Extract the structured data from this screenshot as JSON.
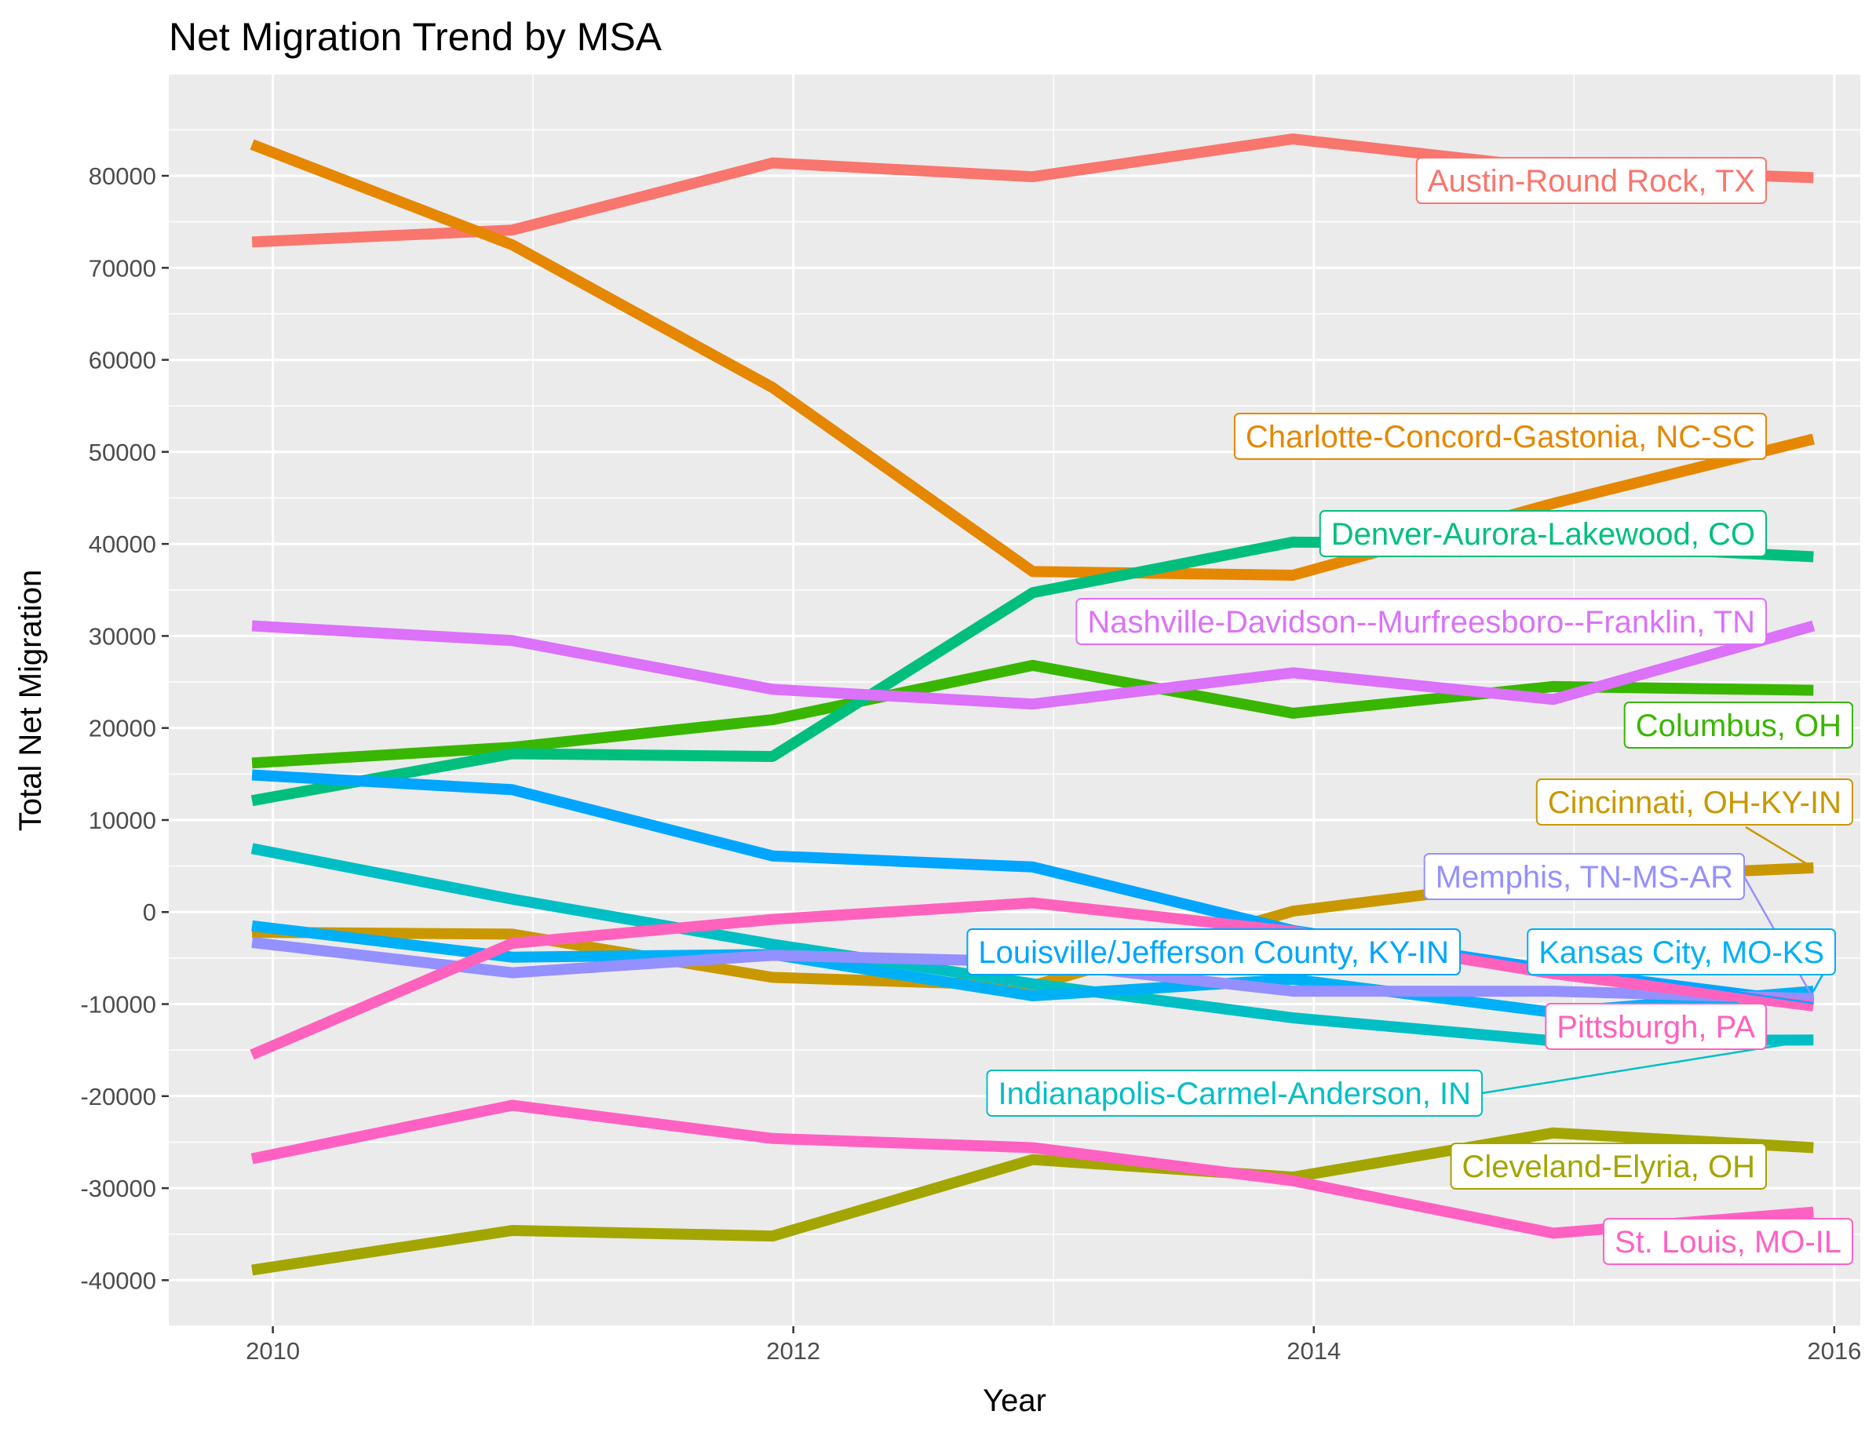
{
  "chart_data": {
    "type": "line",
    "title": "Net Migration Trend by MSA",
    "xlabel": "Year",
    "ylabel": "Total Net Migration",
    "xlim": [
      2009.6,
      2016.1
    ],
    "ylim": [
      -45000,
      91000
    ],
    "x_ticks": [
      2010,
      2012,
      2014,
      2016
    ],
    "y_ticks": [
      -40000,
      -30000,
      -20000,
      -10000,
      0,
      10000,
      20000,
      30000,
      40000,
      50000,
      60000,
      70000,
      80000
    ],
    "grid": true,
    "legend": "direct labels at line ends",
    "x": [
      2009.92,
      2010.92,
      2011.92,
      2012.92,
      2013.92,
      2014.92,
      2015.92
    ],
    "series": [
      {
        "name": "Austin-Round Rock, TX",
        "color": "#F8766D",
        "values": [
          72800,
          74100,
          81400,
          79900,
          84000,
          80800,
          79800
        ]
      },
      {
        "name": "Charlotte-Concord-Gastonia, NC-SC",
        "color": "#E58700",
        "values": [
          83400,
          72500,
          57000,
          37000,
          36600,
          44400,
          51400
        ]
      },
      {
        "name": "Cincinnati, OH-KY-IN",
        "color": "#C99800",
        "values": [
          -2200,
          -2400,
          -7100,
          -8000,
          100,
          3600,
          4800
        ]
      },
      {
        "name": "Cleveland-Elyria, OH",
        "color": "#A3A500",
        "values": [
          -38900,
          -34600,
          -35200,
          -26900,
          -28800,
          -24000,
          -25600
        ]
      },
      {
        "name": "Columbus, OH",
        "color": "#39B600",
        "values": [
          16200,
          17900,
          20900,
          26800,
          21600,
          24500,
          24100
        ]
      },
      {
        "name": "Denver-Aurora-Lakewood, CO",
        "color": "#00BF7D",
        "values": [
          12100,
          17200,
          16900,
          34700,
          40200,
          40000,
          38600
        ]
      },
      {
        "name": "Indianapolis-Carmel-Anderson, IN",
        "color": "#00BFC4",
        "values": [
          6900,
          1400,
          -3500,
          -7800,
          -11500,
          -14000,
          -13900
        ]
      },
      {
        "name": "Kansas City, MO-KS",
        "color": "#00B0F6",
        "values": [
          -1500,
          -4900,
          -4600,
          -9100,
          -7300,
          -10900,
          -8600
        ]
      },
      {
        "name": "Louisville/Jefferson County, KY-IN",
        "color": "#00A5FF",
        "values": [
          14900,
          13300,
          6100,
          4900,
          -2000,
          -6300,
          -9900
        ]
      },
      {
        "name": "Memphis, TN-MS-AR",
        "color": "#9590FF",
        "values": [
          -3300,
          -6600,
          -4700,
          -5400,
          -8600,
          -8600,
          -9400
        ]
      },
      {
        "name": "Nashville-Davidson--Murfreesboro--Franklin, TN",
        "color": "#DC71FA",
        "values": [
          31100,
          29500,
          24200,
          22600,
          26000,
          23100,
          31100
        ]
      },
      {
        "name": "Pittsburgh, PA",
        "color": "#FF62BC",
        "values": [
          -15500,
          -3400,
          -800,
          1000,
          -2100,
          -6700,
          -10200
        ]
      },
      {
        "name": "St. Louis, MO-IL",
        "color": "#FF61C3",
        "values": [
          -26800,
          -21000,
          -24600,
          -25600,
          -29200,
          -34900,
          -32600
        ]
      }
    ]
  }
}
